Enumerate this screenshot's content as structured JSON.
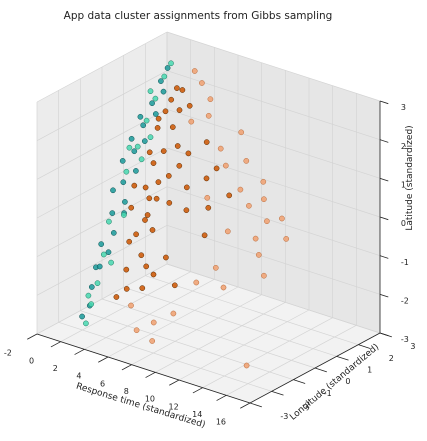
{
  "chart_data": {
    "type": "scatter",
    "projection": "3d",
    "title": "App data cluster assignments from Gibbs sampling",
    "xlabel": "Response time (standardized)",
    "ylabel": "Longitude (standardized)",
    "zlabel": "Latitude (standardized)",
    "xlim": [
      -2,
      16
    ],
    "ylim": [
      -3,
      3
    ],
    "zlim": [
      -3,
      3
    ],
    "xticks": [
      "-2",
      "0",
      "2",
      "4",
      "6",
      "8",
      "10",
      "12",
      "14",
      "16"
    ],
    "yticks": [
      "-3",
      "-2",
      "-1",
      "0",
      "1",
      "2",
      "3"
    ],
    "zticks": [
      "-3",
      "-2",
      "-1",
      "0",
      "1",
      "2",
      "3"
    ],
    "grid": true,
    "legend": "none",
    "series": [
      {
        "color": "#cc5500",
        "edge": "#5a2a00",
        "points": [
          [
            1.2,
            -0.4,
            -0.2
          ],
          [
            1.5,
            0.1,
            0.2
          ],
          [
            1.8,
            0.3,
            0.8
          ],
          [
            2.0,
            -0.2,
            -0.5
          ],
          [
            2.3,
            0.5,
            1.1
          ],
          [
            1.6,
            0.6,
            1.6
          ],
          [
            1.9,
            0.8,
            2.0
          ],
          [
            2.4,
            0.2,
            0.4
          ],
          [
            2.8,
            -0.1,
            0.1
          ],
          [
            3.1,
            0.3,
            0.6
          ],
          [
            1.4,
            -0.6,
            -1.0
          ],
          [
            1.7,
            -0.9,
            -1.6
          ],
          [
            2.1,
            -1.1,
            -2.0
          ],
          [
            2.6,
            -0.7,
            -1.2
          ],
          [
            3.3,
            0.6,
            1.3
          ],
          [
            2.2,
            0.9,
            2.3
          ],
          [
            1.3,
            0.4,
            1.0
          ],
          [
            2.7,
            0.7,
            1.7
          ],
          [
            3.5,
            0.1,
            0.0
          ],
          [
            1.1,
            -0.2,
            0.3
          ],
          [
            2.5,
            1.0,
            2.6
          ],
          [
            3.0,
            -0.4,
            -0.6
          ],
          [
            1.6,
            -1.3,
            -2.2
          ],
          [
            2.9,
            0.9,
            2.1
          ],
          [
            3.8,
            0.4,
            0.9
          ],
          [
            2.0,
            0.0,
            0.0
          ],
          [
            1.8,
            -0.5,
            -0.8
          ],
          [
            2.4,
            -0.3,
            -0.3
          ],
          [
            3.2,
            -0.8,
            -1.4
          ],
          [
            1.5,
            0.7,
            1.8
          ],
          [
            4.2,
            0.6,
            1.2
          ],
          [
            4.8,
            0.2,
            0.5
          ],
          [
            5.5,
            -0.2,
            0.1
          ],
          [
            6.1,
            0.4,
            0.8
          ],
          [
            3.6,
            -1.2,
            -1.8
          ],
          [
            4.5,
            -0.6,
            -1.1
          ],
          [
            5.2,
            0.9,
            1.5
          ],
          [
            6.8,
            0.1,
            0.2
          ],
          [
            7.4,
            -0.4,
            -0.3
          ],
          [
            8.2,
            0.3,
            0.6
          ],
          [
            2.6,
            1.2,
            2.5
          ],
          [
            3.4,
            1.1,
            2.2
          ],
          [
            4.0,
            -0.9,
            -1.5
          ],
          [
            5.8,
            -0.9,
            -1.6
          ],
          [
            6.4,
            0.7,
            1.0
          ]
        ]
      },
      {
        "color": "#f0a070",
        "edge": "#b86a3a",
        "points": [
          [
            3.9,
            0.9,
            1.9
          ],
          [
            5.0,
            1.1,
            2.1
          ],
          [
            6.2,
            1.0,
            1.4
          ],
          [
            7.0,
            0.8,
            1.1
          ],
          [
            8.6,
            0.6,
            0.7
          ],
          [
            9.5,
            0.5,
            0.4
          ],
          [
            10.4,
            0.7,
            0.6
          ],
          [
            11.2,
            0.4,
            0.2
          ],
          [
            9.0,
            -0.2,
            -0.1
          ],
          [
            12.1,
            0.6,
            0.3
          ],
          [
            7.8,
            -1.0,
            -1.3
          ],
          [
            6.6,
            -1.4,
            -2.1
          ],
          [
            5.3,
            -1.6,
            -2.4
          ],
          [
            8.9,
            -0.7,
            -0.9
          ],
          [
            10.1,
            -1.0,
            -1.2
          ],
          [
            4.6,
            1.4,
            2.4
          ],
          [
            3.7,
            1.5,
            2.7
          ],
          [
            2.9,
            1.6,
            2.9
          ],
          [
            11.8,
            -0.3,
            -0.4
          ],
          [
            13.2,
            0.2,
            0.0
          ],
          [
            7.2,
            1.4,
            1.8
          ],
          [
            8.0,
            1.2,
            1.2
          ],
          [
            5.9,
            -2.0,
            -2.7
          ],
          [
            4.4,
            -1.9,
            -2.6
          ],
          [
            9.8,
            1.0,
            0.9
          ],
          [
            14.8,
            -2.5,
            -2.3
          ],
          [
            6.9,
            0.0,
            0.5
          ],
          [
            10.8,
            0.1,
            -0.2
          ],
          [
            12.6,
            -0.5,
            -0.8
          ],
          [
            3.2,
            -1.5,
            -2.2
          ]
        ]
      },
      {
        "color": "#1a9a9a",
        "edge": "#0a4f4f",
        "points": [
          [
            -0.6,
            -0.8,
            -1.2
          ],
          [
            -0.4,
            -0.4,
            -0.5
          ],
          [
            -0.2,
            0.0,
            0.2
          ],
          [
            0.0,
            0.4,
            0.9
          ],
          [
            0.2,
            0.7,
            1.5
          ],
          [
            0.4,
            1.0,
            2.0
          ],
          [
            0.6,
            1.3,
            2.5
          ],
          [
            0.8,
            1.5,
            2.8
          ],
          [
            -0.5,
            -1.1,
            -1.7
          ],
          [
            -0.3,
            -1.4,
            -2.1
          ],
          [
            -0.1,
            -1.6,
            -2.5
          ],
          [
            0.1,
            -0.6,
            -0.9
          ],
          [
            0.3,
            -0.2,
            -0.2
          ],
          [
            0.5,
            0.2,
            0.5
          ],
          [
            -0.7,
            -0.2,
            0.0
          ],
          [
            -0.8,
            0.3,
            0.6
          ],
          [
            -0.6,
            0.6,
            1.1
          ],
          [
            0.7,
            0.5,
            1.2
          ],
          [
            0.9,
            0.9,
            1.8
          ],
          [
            1.0,
            1.2,
            2.3
          ],
          [
            -0.2,
            -1.9,
            -2.7
          ],
          [
            0.0,
            -1.2,
            -1.6
          ],
          [
            0.2,
            -0.9,
            -1.3
          ],
          [
            -0.4,
            0.9,
            1.6
          ],
          [
            0.6,
            -0.4,
            -0.4
          ]
        ]
      },
      {
        "color": "#48d8b0",
        "edge": "#1f7a62",
        "points": [
          [
            -0.3,
            0.2,
            0.4
          ],
          [
            0.1,
            0.5,
            1.0
          ],
          [
            0.3,
            0.8,
            1.6
          ],
          [
            0.5,
            1.1,
            2.1
          ],
          [
            0.7,
            1.4,
            2.6
          ],
          [
            -0.5,
            -0.5,
            -0.7
          ],
          [
            -0.2,
            -0.9,
            -1.4
          ],
          [
            0.0,
            -1.3,
            -2.0
          ],
          [
            0.2,
            -1.7,
            -2.4
          ],
          [
            0.4,
            -0.3,
            -0.5
          ],
          [
            -0.6,
            0.5,
            0.9
          ],
          [
            0.8,
            0.3,
            0.8
          ],
          [
            1.0,
            0.6,
            1.3
          ],
          [
            0.6,
            -1.0,
            -1.5
          ],
          [
            -0.1,
            1.2,
            2.2
          ],
          [
            0.3,
            -2.0,
            -2.8
          ],
          [
            0.9,
            1.6,
            2.9
          ],
          [
            -0.4,
            -1.5,
            -2.3
          ]
        ]
      }
    ]
  }
}
